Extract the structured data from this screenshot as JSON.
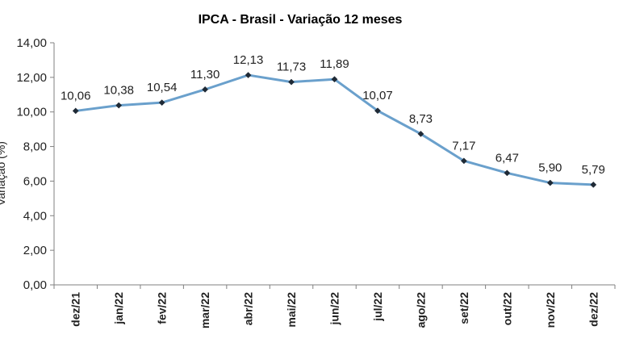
{
  "chart_data": {
    "type": "line",
    "title": "IPCA - Brasil - Variação 12 meses",
    "xlabel": "",
    "ylabel": "Variação (%)",
    "ylim": [
      0,
      14
    ],
    "yticks": [
      "0,00",
      "2,00",
      "4,00",
      "6,00",
      "8,00",
      "10,00",
      "12,00",
      "14,00"
    ],
    "categories": [
      "dez/21",
      "jan/22",
      "fev/22",
      "mar/22",
      "abr/22",
      "mai/22",
      "jun/22",
      "jul/22",
      "ago/22",
      "set/22",
      "out/22",
      "nov/22",
      "dez/22"
    ],
    "series": [
      {
        "name": "IPCA 12 meses",
        "values": [
          10.06,
          10.38,
          10.54,
          11.3,
          12.13,
          11.73,
          11.89,
          10.07,
          8.73,
          7.17,
          6.47,
          5.9,
          5.79
        ],
        "labels": [
          "10,06",
          "10,38",
          "10,54",
          "11,30",
          "12,13",
          "11,73",
          "11,89",
          "10,07",
          "8,73",
          "7,17",
          "6,47",
          "5,90",
          "5,79"
        ],
        "line_color": "#6aa0cc",
        "marker_color": "#1f2a36"
      }
    ],
    "grid": false,
    "legend": "none"
  }
}
